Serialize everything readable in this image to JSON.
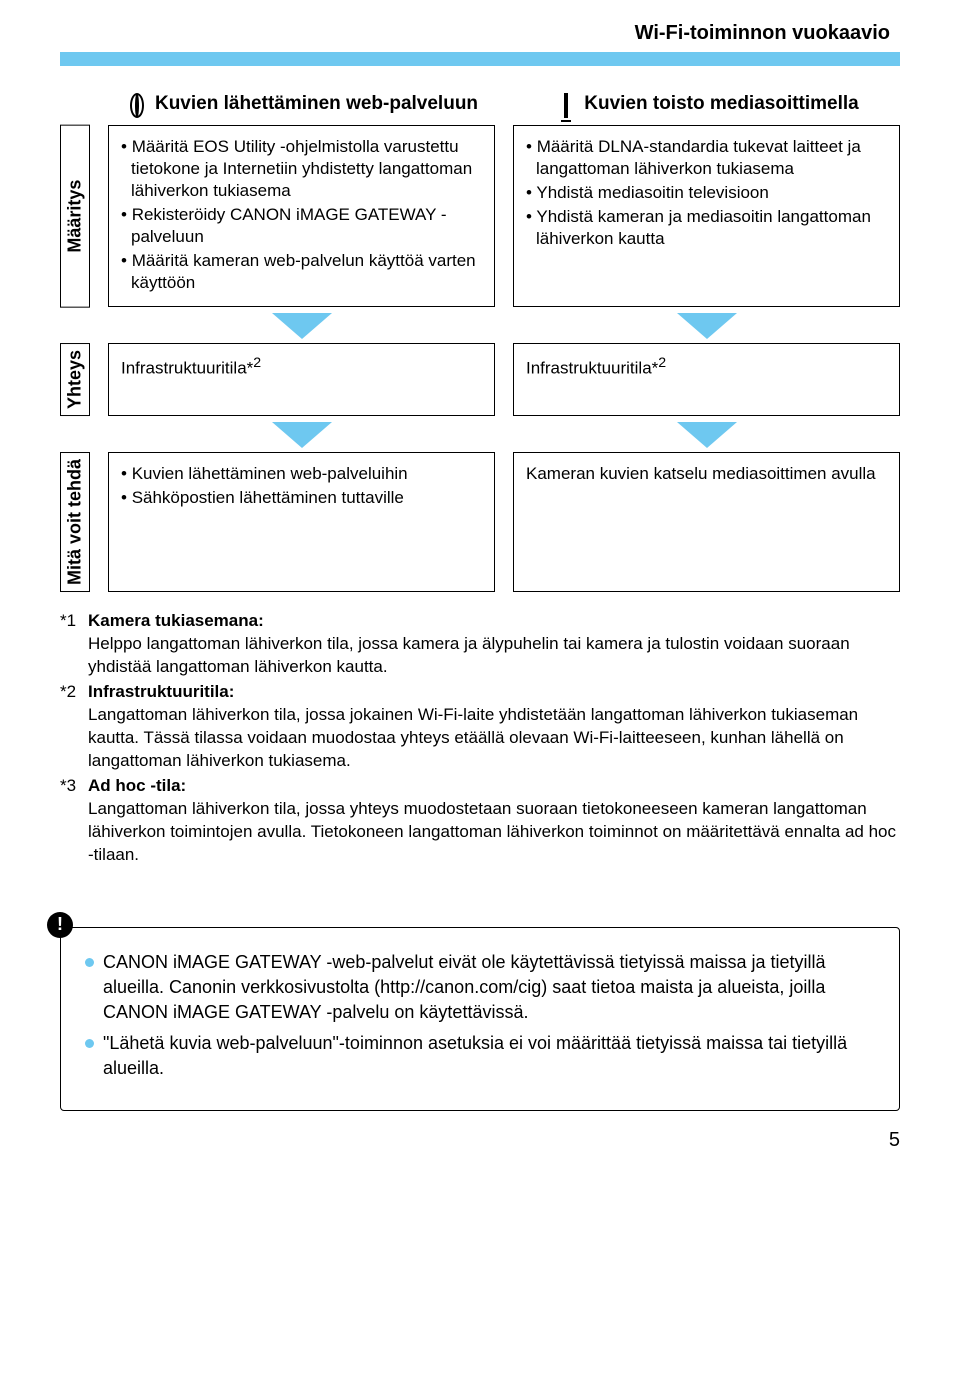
{
  "header": {
    "title": "Wi-Fi-toiminnon vuokaavio"
  },
  "colors": {
    "accent": "#6ec8f0",
    "border": "#000000",
    "bg": "#ffffff"
  },
  "columns": {
    "left": {
      "icon": "globe-icon",
      "title": "Kuvien lähettäminen web-palveluun"
    },
    "right": {
      "icon": "monitor-icon",
      "title": "Kuvien toisto mediasoittimella"
    }
  },
  "rows": {
    "maaritys": {
      "label": "Määritys",
      "left": [
        "Määritä EOS Utility -ohjelmistolla varustettu tietokone ja Internetiin yhdistetty langattoman lähiverkon tukiasema",
        "Rekisteröidy CANON iMAGE GATEWAY -palveluun",
        "Määritä kameran web-palvelun käyttöä varten käyttöön"
      ],
      "right": [
        "Määritä DLNA-standardia tukevat laitteet ja langattoman lähiverkon tukiasema",
        "Yhdistä mediasoitin televisioon",
        "Yhdistä kameran ja mediasoitin langattoman lähiverkon kautta"
      ]
    },
    "yhteys": {
      "label": "Yhteys",
      "left": "Infrastruktuuritila*",
      "left_sup": "2",
      "right": "Infrastruktuuritila*",
      "right_sup": "2"
    },
    "mita": {
      "label": "Mitä voit tehdä",
      "left": [
        "Kuvien lähettäminen web-palveluihin",
        "Sähköpostien lähettäminen tuttaville"
      ],
      "right_text": "Kameran kuvien katselu mediasoittimen avulla"
    }
  },
  "footnotes": [
    {
      "num": "*1",
      "title": "Kamera tukiasemana:",
      "body": "Helppo langattoman lähiverkon tila, jossa kamera ja älypuhelin tai kamera ja tulostin voidaan suoraan yhdistää langattoman lähiverkon kautta."
    },
    {
      "num": "*2",
      "title": "Infrastruktuuritila:",
      "body": "Langattoman lähiverkon tila, jossa jokainen Wi-Fi-laite yhdistetään langattoman lähiverkon tukiaseman kautta. Tässä tilassa voidaan muodostaa yhteys etäällä olevaan Wi-Fi-laitteeseen, kunhan lähellä on langattoman lähiverkon tukiasema."
    },
    {
      "num": "*3",
      "title": "Ad hoc -tila:",
      "body": "Langattoman lähiverkon tila, jossa yhteys muodostetaan suoraan tietokoneeseen kameran langattoman lähiverkon toimintojen avulla. Tietokoneen langattoman lähiverkon toiminnot on määritettävä ennalta ad hoc -tilaan."
    }
  ],
  "infobox": [
    "CANON iMAGE GATEWAY -web-palvelut eivät ole käytettävissä tietyissä maissa ja tietyillä alueilla. Canonin verkkosivustolta (http://canon.com/cig) saat tietoa maista ja alueista, joilla CANON iMAGE GATEWAY -palvelu on käytettävissä.",
    "\"Lähetä kuvia web-palveluun\"-toiminnon asetuksia ei voi määrittää tietyissä maissa tai tietyillä alueilla."
  ],
  "page_number": "5"
}
